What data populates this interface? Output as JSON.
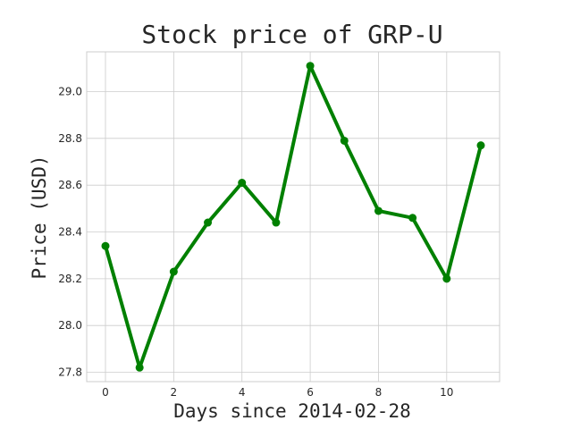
{
  "chart_data": {
    "type": "line",
    "title": "Stock price of GRP-U",
    "xlabel": "Days since 2014-02-28",
    "ylabel": "Price (USD)",
    "x": [
      0,
      1,
      2,
      3,
      4,
      5,
      6,
      7,
      8,
      9,
      10,
      11
    ],
    "series": [
      {
        "values": [
          28.34,
          27.82,
          28.23,
          28.44,
          28.61,
          28.44,
          29.11,
          28.79,
          28.49,
          28.46,
          28.2,
          28.77
        ]
      }
    ],
    "xlim": [
      -0.55,
      11.55
    ],
    "ylim": [
      27.76,
      29.17
    ],
    "xticks": [
      0,
      2,
      4,
      6,
      8,
      10
    ],
    "xtick_labels": [
      "0",
      "2",
      "4",
      "6",
      "8",
      "10"
    ],
    "yticks": [
      27.8,
      28.0,
      28.2,
      28.4,
      28.6,
      28.8,
      29.0
    ],
    "ytick_labels": [
      "27.8",
      "28.0",
      "28.2",
      "28.4",
      "28.6",
      "28.8",
      "29.0"
    ],
    "grid": true,
    "line_color": "#008000",
    "grid_color": "#cccccc",
    "frame_color": "#cccccc",
    "marker": "circle"
  }
}
